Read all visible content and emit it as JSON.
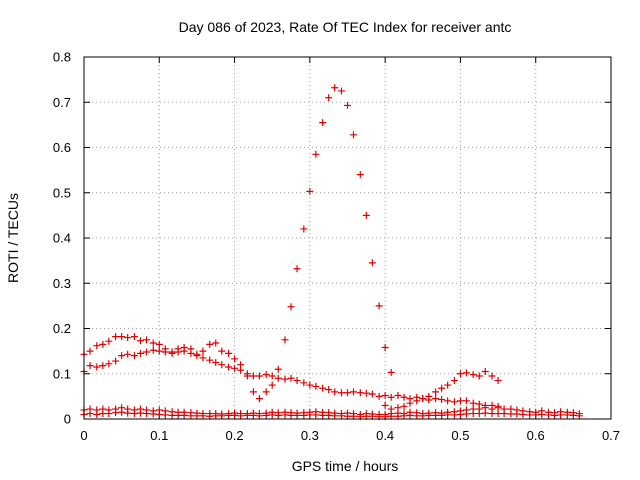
{
  "chart_data": {
    "type": "scatter",
    "title": "Day 086 of 2023, Rate Of TEC Index for receiver antc",
    "xlabel": "GPS time / hours",
    "ylabel": "ROTI / TECUs",
    "xlim": [
      0,
      0.7
    ],
    "ylim": [
      0,
      0.8
    ],
    "xticks": [
      "0",
      "0.1",
      "0.2",
      "0.3",
      "0.4",
      "0.5",
      "0.6",
      "0.7"
    ],
    "yticks": [
      "0",
      "0.1",
      "0.2",
      "0.3",
      "0.4",
      "0.5",
      "0.6",
      "0.7",
      "0.8"
    ],
    "grid": true,
    "legend": "none",
    "marker": "plus",
    "color": "#e00000",
    "series": [
      {
        "x": [
          0.267,
          0.275,
          0.283,
          0.292,
          0.3,
          0.308,
          0.317,
          0.325,
          0.333,
          0.342,
          0.35,
          0.358,
          0.367,
          0.375,
          0.383,
          0.392,
          0.4,
          0.408
        ],
        "y": [
          0.175,
          0.248,
          0.332,
          0.42,
          0.503,
          0.585,
          0.655,
          0.71,
          0.732,
          0.725,
          0.693,
          0.628,
          0.54,
          0.45,
          0.345,
          0.25,
          0.158,
          0.103
        ]
      },
      {
        "x": [
          0.0,
          0.008,
          0.017,
          0.025,
          0.033,
          0.042,
          0.05,
          0.058,
          0.067,
          0.075,
          0.083,
          0.092,
          0.1,
          0.108,
          0.117,
          0.125,
          0.133,
          0.142,
          0.15,
          0.158,
          0.167,
          0.175,
          0.183,
          0.192,
          0.2,
          0.208
        ],
        "y": [
          0.143,
          0.15,
          0.162,
          0.165,
          0.172,
          0.182,
          0.182,
          0.18,
          0.182,
          0.173,
          0.175,
          0.168,
          0.165,
          0.155,
          0.148,
          0.155,
          0.158,
          0.155,
          0.143,
          0.15,
          0.165,
          0.168,
          0.15,
          0.145,
          0.133,
          0.12
        ]
      },
      {
        "x": [
          0.0,
          0.008,
          0.017,
          0.025,
          0.033,
          0.042,
          0.05,
          0.058,
          0.067,
          0.075,
          0.083,
          0.092,
          0.1,
          0.108,
          0.117,
          0.125,
          0.133,
          0.142,
          0.15,
          0.158,
          0.167,
          0.175,
          0.183,
          0.192,
          0.2,
          0.208,
          0.217,
          0.225,
          0.233,
          0.242,
          0.25,
          0.258,
          0.267,
          0.275,
          0.283,
          0.292,
          0.3,
          0.308,
          0.317,
          0.325,
          0.333,
          0.342,
          0.35,
          0.358,
          0.367,
          0.375,
          0.383,
          0.392,
          0.4,
          0.408,
          0.417,
          0.425,
          0.433,
          0.442,
          0.45,
          0.458,
          0.467,
          0.475,
          0.483,
          0.492,
          0.5,
          0.508,
          0.517,
          0.525,
          0.533,
          0.542,
          0.55
        ],
        "y": [
          0.105,
          0.118,
          0.115,
          0.118,
          0.122,
          0.128,
          0.14,
          0.143,
          0.14,
          0.145,
          0.148,
          0.152,
          0.15,
          0.148,
          0.145,
          0.148,
          0.15,
          0.145,
          0.14,
          0.135,
          0.13,
          0.125,
          0.12,
          0.115,
          0.112,
          0.108,
          0.1,
          0.095,
          0.095,
          0.098,
          0.095,
          0.09,
          0.088,
          0.09,
          0.085,
          0.08,
          0.075,
          0.072,
          0.068,
          0.065,
          0.06,
          0.058,
          0.058,
          0.06,
          0.058,
          0.057,
          0.055,
          0.05,
          0.052,
          0.048,
          0.052,
          0.048,
          0.045,
          0.048,
          0.045,
          0.042,
          0.045,
          0.043,
          0.04,
          0.038,
          0.04,
          0.04,
          0.035,
          0.033,
          0.03,
          0.03,
          0.028
        ]
      },
      {
        "x": [
          0.217,
          0.225,
          0.233,
          0.242,
          0.25,
          0.258
        ],
        "y": [
          0.095,
          0.06,
          0.045,
          0.06,
          0.075,
          0.11
        ]
      },
      {
        "x": [
          0.4,
          0.408,
          0.417,
          0.425,
          0.433,
          0.442,
          0.45,
          0.458,
          0.467,
          0.475,
          0.483,
          0.492,
          0.5,
          0.508,
          0.517,
          0.525,
          0.533,
          0.542,
          0.55
        ],
        "y": [
          0.03,
          0.022,
          0.025,
          0.028,
          0.035,
          0.04,
          0.045,
          0.05,
          0.06,
          0.068,
          0.075,
          0.085,
          0.1,
          0.102,
          0.098,
          0.095,
          0.105,
          0.095,
          0.085
        ]
      },
      {
        "x": [
          0.0,
          0.008,
          0.017,
          0.025,
          0.033,
          0.042,
          0.05,
          0.058,
          0.067,
          0.075,
          0.083,
          0.092,
          0.1,
          0.108,
          0.117,
          0.125,
          0.133,
          0.142,
          0.15,
          0.158,
          0.167,
          0.175,
          0.183,
          0.192,
          0.2,
          0.208,
          0.217,
          0.225,
          0.233,
          0.242,
          0.25,
          0.258,
          0.267,
          0.275,
          0.283,
          0.292,
          0.3,
          0.308,
          0.317,
          0.325,
          0.333,
          0.342,
          0.35,
          0.358,
          0.367,
          0.375,
          0.383,
          0.392,
          0.4,
          0.408,
          0.417,
          0.425,
          0.433,
          0.442,
          0.45,
          0.458,
          0.467,
          0.475,
          0.483,
          0.492,
          0.5,
          0.508,
          0.517,
          0.525,
          0.533,
          0.542,
          0.55,
          0.558,
          0.567,
          0.575,
          0.583,
          0.592,
          0.6,
          0.608,
          0.617,
          0.625,
          0.633,
          0.642,
          0.65,
          0.658
        ],
        "y": [
          0.02,
          0.022,
          0.02,
          0.022,
          0.02,
          0.022,
          0.025,
          0.022,
          0.02,
          0.022,
          0.02,
          0.018,
          0.02,
          0.018,
          0.016,
          0.015,
          0.015,
          0.014,
          0.013,
          0.012,
          0.012,
          0.012,
          0.011,
          0.012,
          0.013,
          0.012,
          0.012,
          0.013,
          0.012,
          0.013,
          0.015,
          0.014,
          0.015,
          0.014,
          0.013,
          0.014,
          0.015,
          0.016,
          0.015,
          0.014,
          0.013,
          0.012,
          0.013,
          0.012,
          0.01,
          0.012,
          0.011,
          0.01,
          0.01,
          0.012,
          0.013,
          0.012,
          0.015,
          0.014,
          0.012,
          0.013,
          0.014,
          0.013,
          0.015,
          0.016,
          0.018,
          0.02,
          0.022,
          0.022,
          0.025,
          0.022,
          0.025,
          0.022,
          0.022,
          0.02,
          0.018,
          0.016,
          0.015,
          0.018,
          0.015,
          0.014,
          0.016,
          0.015,
          0.014,
          0.012
        ]
      },
      {
        "x": [
          0.0,
          0.008,
          0.017,
          0.025,
          0.033,
          0.042,
          0.05,
          0.058,
          0.067,
          0.075,
          0.083,
          0.092,
          0.1,
          0.108,
          0.117,
          0.125,
          0.133,
          0.142,
          0.15,
          0.158,
          0.167,
          0.175,
          0.183,
          0.192,
          0.2,
          0.208,
          0.217,
          0.225,
          0.233,
          0.242,
          0.25,
          0.258,
          0.267,
          0.275,
          0.283,
          0.292,
          0.3,
          0.308,
          0.317,
          0.325,
          0.333,
          0.342,
          0.35,
          0.358,
          0.367,
          0.375,
          0.383,
          0.392,
          0.4,
          0.408,
          0.417,
          0.425,
          0.433,
          0.442,
          0.45,
          0.458,
          0.467,
          0.475,
          0.483,
          0.492,
          0.5,
          0.508,
          0.517,
          0.525,
          0.533,
          0.542,
          0.55,
          0.558,
          0.567,
          0.575,
          0.583,
          0.592,
          0.6,
          0.608,
          0.617,
          0.625,
          0.633,
          0.642,
          0.65,
          0.658
        ],
        "y": [
          0.01,
          0.012,
          0.01,
          0.012,
          0.012,
          0.014,
          0.015,
          0.013,
          0.012,
          0.013,
          0.012,
          0.011,
          0.01,
          0.009,
          0.008,
          0.008,
          0.008,
          0.007,
          0.007,
          0.007,
          0.006,
          0.007,
          0.007,
          0.008,
          0.008,
          0.007,
          0.008,
          0.008,
          0.007,
          0.008,
          0.009,
          0.008,
          0.009,
          0.008,
          0.008,
          0.008,
          0.009,
          0.009,
          0.008,
          0.008,
          0.007,
          0.007,
          0.006,
          0.006,
          0.005,
          0.006,
          0.006,
          0.005,
          0.005,
          0.006,
          0.006,
          0.007,
          0.008,
          0.007,
          0.007,
          0.008,
          0.008,
          0.008,
          0.009,
          0.009,
          0.01,
          0.011,
          0.012,
          0.012,
          0.013,
          0.012,
          0.012,
          0.012,
          0.011,
          0.011,
          0.01,
          0.009,
          0.009,
          0.01,
          0.009,
          0.008,
          0.009,
          0.009,
          0.008,
          0.007
        ]
      }
    ]
  }
}
